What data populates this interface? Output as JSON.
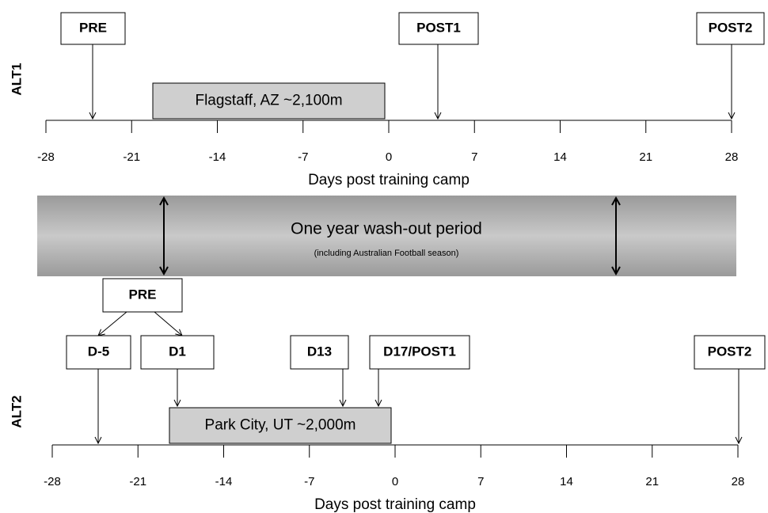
{
  "timelines": [
    {
      "label": "ALT1",
      "ticks": [
        "-28",
        "-21",
        "-14",
        "-7",
        "0",
        "7",
        "14",
        "21",
        "28"
      ],
      "axis_title": "Days post training camp",
      "site": "Flagstaff, AZ ~2,100m",
      "events": [
        "PRE",
        "POST1",
        "POST2"
      ]
    },
    {
      "label": "ALT2",
      "ticks": [
        "-28",
        "-21",
        "-14",
        "-7",
        "0",
        "7",
        "14",
        "21",
        "28"
      ],
      "axis_title": "Days post training camp",
      "site": "Park City, UT ~2,000m",
      "group": "PRE",
      "events": [
        "D-5",
        "D1",
        "D13",
        "D17/POST1",
        "POST2"
      ]
    }
  ],
  "washout": {
    "title": "One year wash-out period",
    "subtitle": "(including Australian Football season)"
  }
}
